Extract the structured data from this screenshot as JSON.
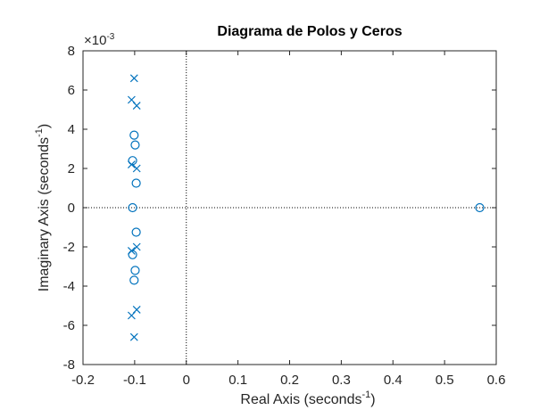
{
  "chart_data": {
    "type": "scatter",
    "title": "Diagrama de Polos y Ceros",
    "xlabel": "Real Axis (seconds",
    "xlabel_sup": "-1",
    "xlabel_close": ")",
    "ylabel": "Imaginary Axis (seconds",
    "ylabel_sup": "-1",
    "ylabel_close": ")",
    "y_exponent_prefix": "×10",
    "y_exponent_power": "-3",
    "xlim": [
      -0.2,
      0.6
    ],
    "ylim": [
      -8,
      8
    ],
    "y_scale_factor": 0.001,
    "x_ticks": [
      -0.2,
      -0.1,
      0,
      0.1,
      0.2,
      0.3,
      0.4,
      0.5,
      0.6
    ],
    "x_tick_labels": [
      "-0.2",
      "-0.1",
      "0",
      "0.1",
      "0.2",
      "0.3",
      "0.4",
      "0.5",
      "0.6"
    ],
    "y_ticks": [
      -8,
      -6,
      -4,
      -2,
      0,
      2,
      4,
      6,
      8
    ],
    "y_tick_labels": [
      "-8",
      "-6",
      "-4",
      "-2",
      "0",
      "2",
      "4",
      "6",
      "8"
    ],
    "grid": false,
    "reference_lines": "dotted lines at x = 0 and y = 0",
    "marker_color": "#0072BD",
    "series": [
      {
        "marker": "x",
        "x": [
          -0.101,
          -0.106,
          -0.096,
          -0.106,
          -0.096,
          -0.096,
          -0.106,
          -0.096,
          -0.106,
          -0.101
        ],
        "y": [
          6.6,
          5.5,
          5.2,
          2.2,
          2.0,
          -2.0,
          -2.2,
          -5.2,
          -5.5,
          -6.6
        ]
      },
      {
        "marker": "o",
        "x": [
          -0.101,
          -0.099,
          -0.104,
          -0.097,
          -0.104,
          -0.097,
          -0.104,
          -0.099,
          -0.101,
          0.568
        ],
        "y": [
          3.7,
          3.2,
          2.4,
          1.25,
          0,
          -1.25,
          -2.4,
          -3.2,
          -3.7,
          0
        ]
      }
    ]
  }
}
